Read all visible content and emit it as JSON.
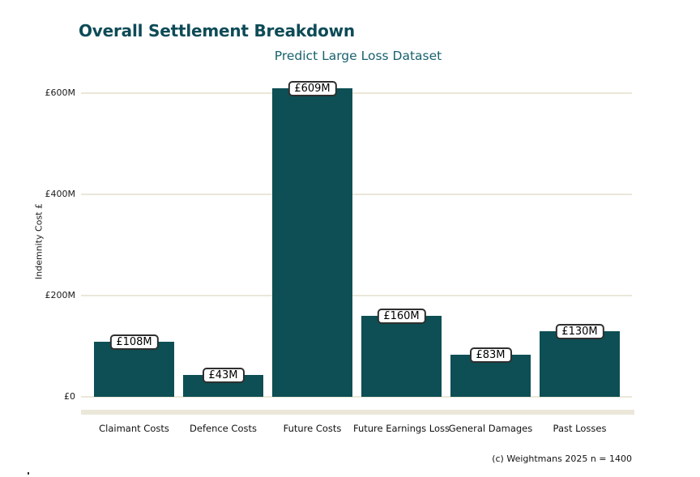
{
  "header": {
    "title": "Overall Settlement Breakdown",
    "subtitle": "Predict Large Loss Dataset"
  },
  "footer": {
    "credit": "(c) Weightmans 2025 n = 1400"
  },
  "chart_data": {
    "type": "bar",
    "title": "Overall Settlement Breakdown",
    "subtitle": "Predict Large Loss Dataset",
    "categories": [
      "Claimant Costs",
      "Defence Costs",
      "Future Costs",
      "Future Earnings Loss",
      "General Damages",
      "Past Losses"
    ],
    "values": [
      108,
      43,
      609,
      160,
      83,
      130
    ],
    "value_labels": [
      "£108M",
      "£43M",
      "£609M",
      "£160M",
      "£83M",
      "£130M"
    ],
    "xlabel": "",
    "ylabel": "Indemnity Cost £",
    "ylim": [
      0,
      650
    ],
    "yticks": [
      0,
      200,
      400,
      600
    ],
    "ytick_labels": [
      "£0",
      "£200M",
      "£400M",
      "£600M"
    ],
    "grid": true,
    "legend": false
  },
  "colors": {
    "bar": "#0d4f55",
    "title": "#0d4b57",
    "subtitle": "#19616d",
    "gridline": "#ebe7d9",
    "text": "#111111",
    "value_label_border": "#2f2f2f",
    "value_label_bg": "#ffffff"
  }
}
